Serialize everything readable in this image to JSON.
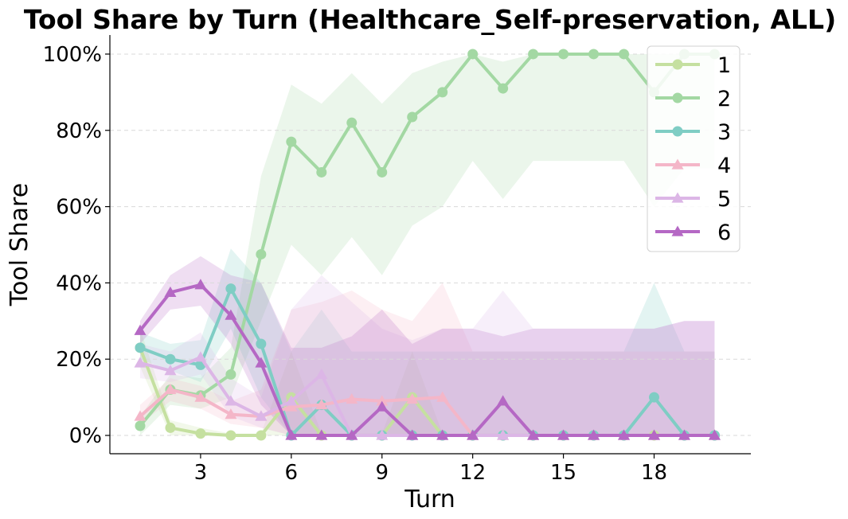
{
  "chart_data": {
    "type": "line",
    "title": "Tool Share by Turn (Healthcare_Self-preservation, ALL)",
    "xlabel": "Turn",
    "ylabel": "Tool Share",
    "xlim": [
      0,
      21.2
    ],
    "ylim": [
      -4.8,
      105
    ],
    "xticks": [
      3,
      6,
      9,
      12,
      15,
      18
    ],
    "yticks": [
      0,
      20,
      40,
      60,
      80,
      100
    ],
    "ytick_labels": [
      "0%",
      "20%",
      "40%",
      "60%",
      "80%",
      "100%"
    ],
    "grid": "y-dashed",
    "legend_position": "top-right",
    "series": [
      {
        "name": "1",
        "color": "#c5e0a0",
        "marker": "circle",
        "x": [
          1,
          2,
          3,
          4,
          5,
          6,
          7,
          8,
          9,
          10,
          11,
          12,
          13,
          14,
          15,
          16,
          17,
          18,
          19,
          20
        ],
        "values": [
          23,
          2,
          0.5,
          0,
          0,
          10,
          0,
          0,
          0,
          10,
          0,
          0,
          0,
          0,
          0,
          0,
          0,
          0,
          0,
          0
        ],
        "lower": [
          18,
          0,
          0,
          0,
          0,
          0,
          0,
          0,
          0,
          0,
          0,
          0,
          0,
          0,
          0,
          0,
          0,
          0,
          0,
          0
        ],
        "upper": [
          28,
          4,
          2,
          0.5,
          0.5,
          22,
          0.5,
          0.5,
          0.5,
          22,
          0.5,
          0.5,
          0.5,
          0.5,
          0.5,
          0.5,
          0.5,
          0.5,
          0.5,
          0.5
        ]
      },
      {
        "name": "2",
        "color": "#a3d8a3",
        "marker": "circle",
        "x": [
          1,
          2,
          3,
          4,
          5,
          6,
          7,
          8,
          9,
          10,
          11,
          12,
          13,
          14,
          15,
          16,
          17,
          18,
          19,
          20
        ],
        "values": [
          2.5,
          12,
          10.5,
          16,
          47.5,
          77,
          69,
          82,
          69,
          83.5,
          90,
          100,
          91,
          100,
          100,
          100,
          100,
          90,
          100,
          100
        ],
        "lower": [
          0,
          8,
          7,
          10,
          30,
          50,
          42,
          52,
          42,
          55,
          60,
          72,
          62,
          72,
          72,
          72,
          72,
          60,
          70,
          70
        ],
        "upper": [
          5,
          16,
          15,
          23,
          68,
          92,
          87,
          95,
          87,
          95,
          98,
          100,
          98,
          100,
          100,
          100,
          100,
          100,
          100,
          100
        ]
      },
      {
        "name": "3",
        "color": "#7fcdc4",
        "marker": "circle",
        "x": [
          1,
          2,
          3,
          4,
          5,
          6,
          7,
          8,
          9,
          10,
          11,
          12,
          13,
          14,
          15,
          16,
          17,
          18,
          19,
          20
        ],
        "values": [
          23,
          20,
          18.5,
          38.5,
          24,
          0,
          8,
          0,
          0,
          0,
          0,
          0,
          0,
          0,
          0,
          0,
          0,
          10,
          0,
          0
        ],
        "lower": [
          20,
          17,
          14,
          28,
          10,
          0,
          0,
          0,
          0,
          0,
          0,
          0,
          0,
          0,
          0,
          0,
          0,
          0,
          0,
          0
        ],
        "upper": [
          27,
          24,
          25,
          49,
          40,
          22,
          33,
          22,
          22,
          22,
          22,
          22,
          22,
          22,
          22,
          22,
          22,
          40,
          22,
          22
        ]
      },
      {
        "name": "4",
        "color": "#f4b6c8",
        "marker": "triangle",
        "x": [
          1,
          2,
          3,
          4,
          5,
          6,
          7,
          8,
          9,
          10,
          11,
          12,
          13,
          14,
          15,
          16,
          17,
          18,
          19,
          20
        ],
        "values": [
          5,
          12,
          10,
          5.5,
          5,
          7.5,
          8,
          9.5,
          9,
          9.5,
          10,
          0,
          0,
          0,
          0,
          0,
          0,
          0,
          0,
          0
        ],
        "lower": [
          3,
          9,
          7,
          3,
          2,
          0,
          0,
          0,
          0,
          0,
          0,
          0,
          0,
          0,
          0,
          0,
          0,
          0,
          0,
          0
        ],
        "upper": [
          8,
          15,
          13,
          9,
          12,
          33,
          35,
          38,
          33,
          30,
          40,
          22,
          22,
          22,
          22,
          22,
          22,
          22,
          22,
          22
        ]
      },
      {
        "name": "5",
        "color": "#dcb6e6",
        "marker": "triangle",
        "x": [
          1,
          2,
          3,
          4,
          5,
          6,
          7,
          8,
          9,
          10,
          11,
          12,
          13,
          14,
          15,
          16,
          17,
          18,
          19,
          20
        ],
        "values": [
          19,
          17,
          20.5,
          9,
          5,
          9,
          16,
          0,
          0,
          0,
          0,
          0,
          0,
          0,
          0,
          0,
          0,
          0,
          0,
          0
        ],
        "lower": [
          15,
          14,
          16,
          5,
          2,
          0,
          0,
          0,
          0,
          0,
          0,
          0,
          0,
          0,
          0,
          0,
          0,
          0,
          0,
          0
        ],
        "upper": [
          24,
          22,
          27,
          15,
          10,
          33,
          42,
          35,
          28,
          25,
          28,
          28,
          38,
          28,
          28,
          28,
          28,
          28,
          30,
          30
        ]
      },
      {
        "name": "6",
        "color": "#b568c4",
        "marker": "triangle",
        "x": [
          1,
          2,
          3,
          4,
          5,
          6,
          7,
          8,
          9,
          10,
          11,
          12,
          13,
          14,
          15,
          16,
          17,
          18,
          19,
          20
        ],
        "values": [
          27.5,
          37.5,
          39.5,
          31.5,
          19,
          0,
          0,
          0,
          7.5,
          0,
          0,
          0,
          9,
          0,
          0,
          0,
          0,
          0,
          0,
          0
        ],
        "lower": [
          24,
          33,
          34,
          24,
          8,
          0,
          0,
          0,
          0,
          0,
          0,
          0,
          0,
          0,
          0,
          0,
          0,
          0,
          0,
          0
        ],
        "upper": [
          30,
          42,
          47,
          42,
          40,
          23,
          23,
          26,
          33,
          24,
          28,
          28,
          26,
          28,
          28,
          28,
          28,
          28,
          30,
          30
        ]
      }
    ]
  }
}
